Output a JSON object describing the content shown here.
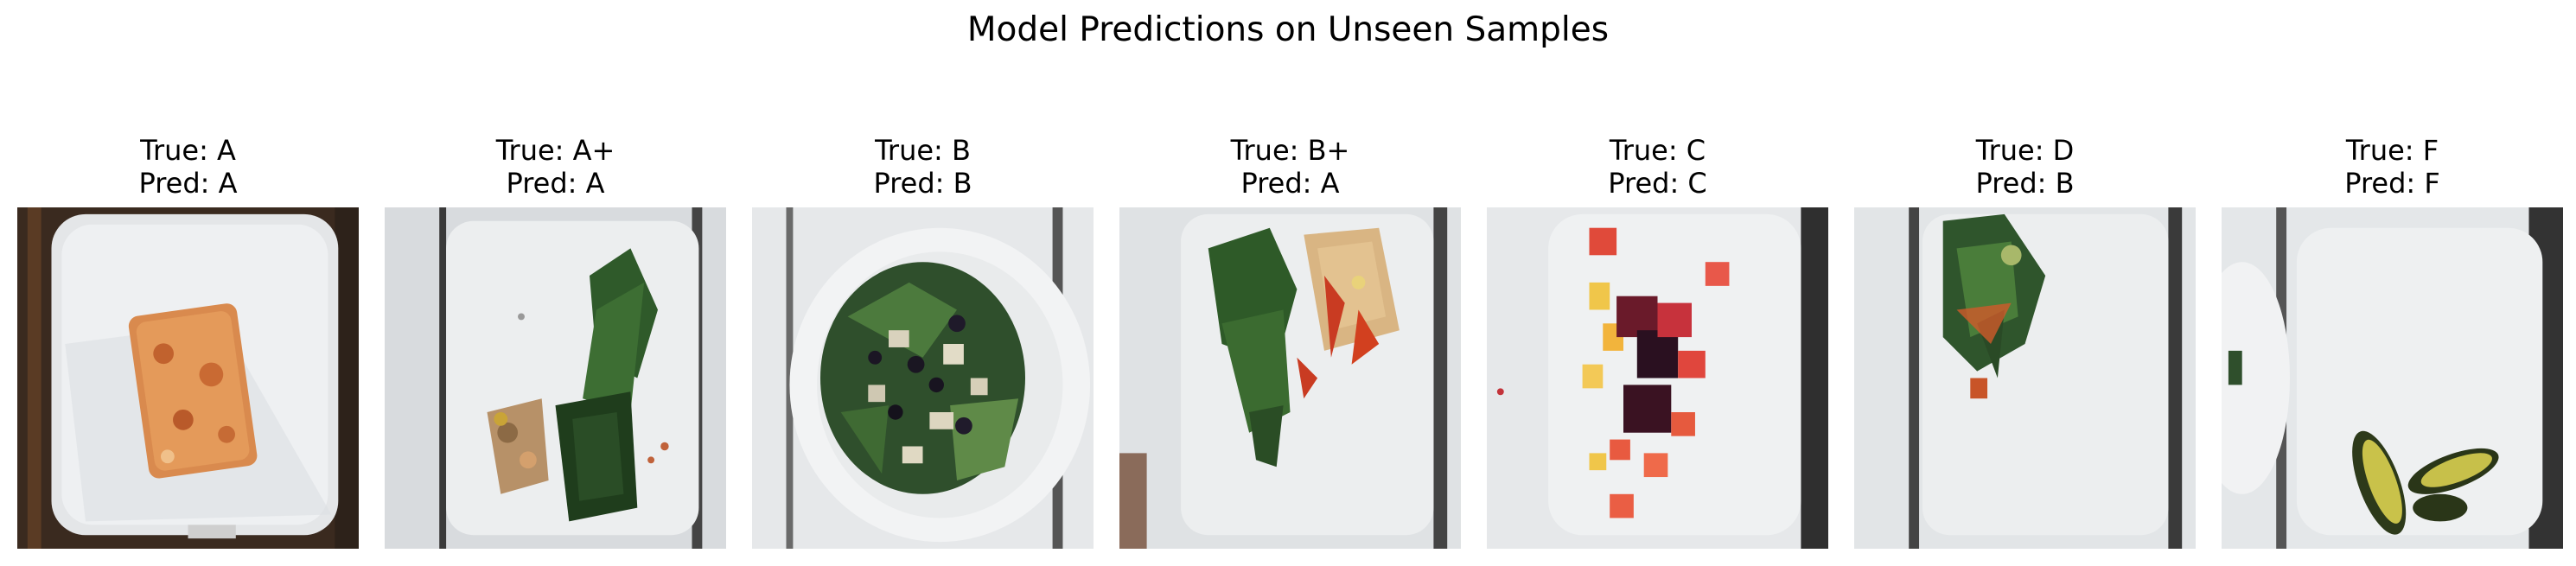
{
  "figure": {
    "title": "Model Predictions on Unseen Samples"
  },
  "samples": [
    {
      "true_label": "True: A",
      "pred_label": "Pred: A",
      "content": "lasagna-on-plate"
    },
    {
      "true_label": "True: A+",
      "pred_label": "Pred: A",
      "content": "greens-and-chicken"
    },
    {
      "true_label": "True: B",
      "pred_label": "Pred: B",
      "content": "salad-with-tofu-and-berries"
    },
    {
      "true_label": "True: B+",
      "pred_label": "Pred: A",
      "content": "spinach-and-grilled-sandwich"
    },
    {
      "true_label": "True: C",
      "pred_label": "Pred: C",
      "content": "fruit-salad"
    },
    {
      "true_label": "True: D",
      "pred_label": "Pred: B",
      "content": "small-salad"
    },
    {
      "true_label": "True: F",
      "pred_label": "Pred: F",
      "content": "avocado-slices"
    }
  ]
}
